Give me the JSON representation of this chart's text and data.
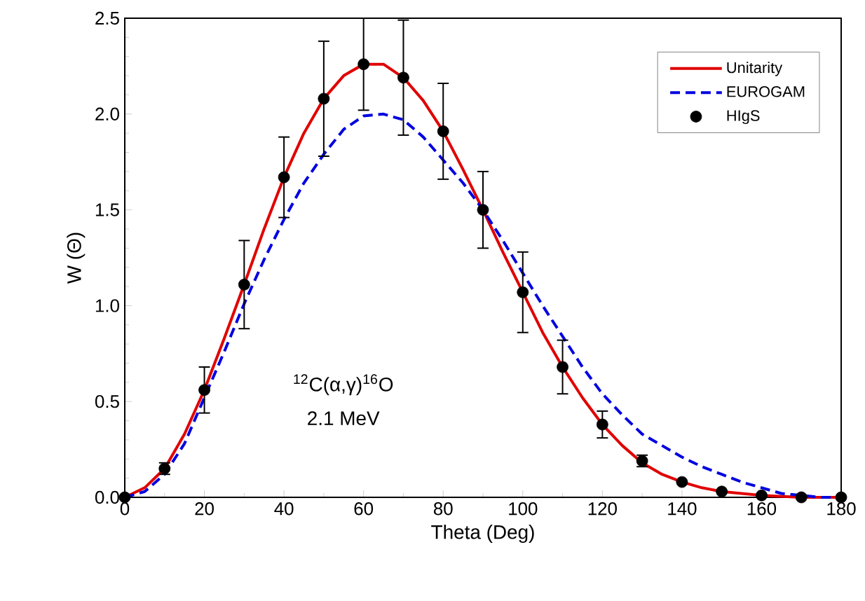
{
  "chart_data": {
    "type": "line",
    "xlabel": "Theta (Deg)",
    "ylabel": "W (Θ)",
    "xlim": [
      0,
      180
    ],
    "xticks": [
      0,
      20,
      40,
      60,
      80,
      100,
      120,
      140,
      160,
      180
    ],
    "ylim": [
      0,
      2.5
    ],
    "yticks": [
      {
        "value": 0,
        "label": "0.0"
      },
      {
        "value": 0.5,
        "label": "0.5"
      },
      {
        "value": 1,
        "label": "1.0"
      },
      {
        "value": 1.5,
        "label": "1.5"
      },
      {
        "value": 2,
        "label": "2.0"
      },
      {
        "value": 2.5,
        "label": "2.5"
      }
    ],
    "legend": "top right",
    "grid": false,
    "annotations": [
      "$^{12}$C(α,γ)$^{16}$O",
      "2.1 MeV"
    ],
    "series": [
      {
        "name": "Unitarity",
        "color": "#e00000",
        "line_style": "solid",
        "marker": "none",
        "x": [
          0,
          5,
          10,
          15,
          20,
          25,
          30,
          35,
          40,
          45,
          50,
          55,
          60,
          65,
          70,
          75,
          80,
          85,
          90,
          95,
          100,
          105,
          110,
          115,
          120,
          125,
          130,
          135,
          140,
          145,
          150,
          155,
          160,
          170,
          180
        ],
        "values": [
          0,
          0.05,
          0.15,
          0.33,
          0.56,
          0.83,
          1.11,
          1.4,
          1.67,
          1.9,
          2.08,
          2.2,
          2.26,
          2.26,
          2.19,
          2.07,
          1.91,
          1.71,
          1.5,
          1.28,
          1.07,
          0.86,
          0.68,
          0.52,
          0.38,
          0.27,
          0.18,
          0.12,
          0.08,
          0.05,
          0.03,
          0.02,
          0.01,
          0,
          0
        ]
      },
      {
        "name": "EUROGAM",
        "color": "#0000e0",
        "line_style": "dashed",
        "marker": "none",
        "x": [
          0,
          5,
          10,
          15,
          20,
          25,
          30,
          35,
          40,
          45,
          50,
          55,
          60,
          65,
          70,
          75,
          80,
          85,
          90,
          95,
          100,
          105,
          110,
          115,
          120,
          125,
          130,
          135,
          140,
          145,
          150,
          155,
          160,
          165,
          170,
          175,
          180
        ],
        "values": [
          0,
          0.03,
          0.12,
          0.28,
          0.52,
          0.76,
          1.01,
          1.24,
          1.45,
          1.64,
          1.79,
          1.92,
          1.99,
          2.0,
          1.97,
          1.88,
          1.76,
          1.64,
          1.5,
          1.34,
          1.17,
          1.0,
          0.84,
          0.68,
          0.54,
          0.43,
          0.33,
          0.27,
          0.21,
          0.16,
          0.12,
          0.08,
          0.05,
          0.02,
          0.01,
          0,
          0
        ]
      },
      {
        "name": "HIgS",
        "type": "scatter",
        "color": "#000000",
        "marker": "circle",
        "x": [
          0,
          10,
          20,
          30,
          40,
          50,
          60,
          70,
          80,
          90,
          100,
          110,
          120,
          130,
          140,
          150,
          160,
          170,
          180
        ],
        "values": [
          0,
          0.15,
          0.56,
          1.11,
          1.67,
          2.08,
          2.26,
          2.19,
          1.91,
          1.5,
          1.07,
          0.68,
          0.38,
          0.19,
          0.08,
          0.03,
          0.01,
          0,
          0
        ],
        "errors": [
          null,
          0.03,
          0.12,
          0.23,
          0.21,
          0.3,
          0.24,
          0.3,
          0.25,
          0.2,
          0.21,
          0.14,
          0.07,
          0.03,
          null,
          null,
          null,
          null,
          null
        ]
      }
    ]
  }
}
